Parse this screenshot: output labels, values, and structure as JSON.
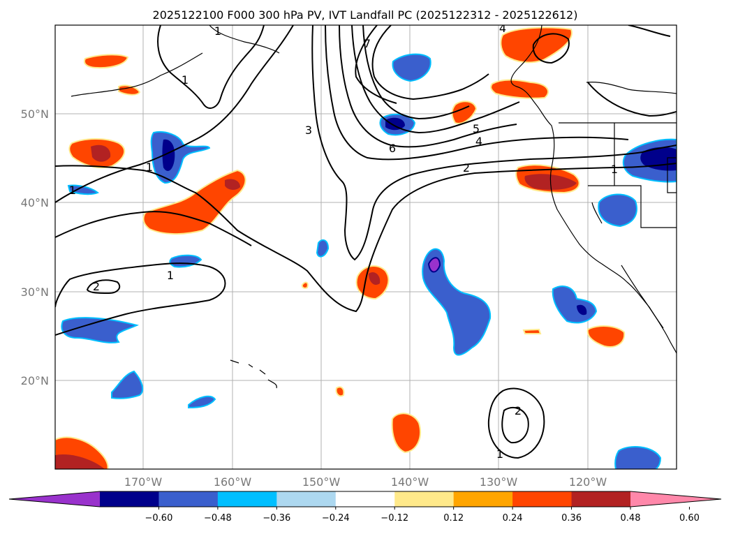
{
  "title": "2025122100 F000 300 hPa PV, IVT Landfall PC (2025122312 - 2025122612)",
  "map": {
    "lat_ticks": [
      "50°N",
      "40°N",
      "30°N",
      "20°N"
    ],
    "lon_ticks": [
      "170°W",
      "160°W",
      "150°W",
      "140°W",
      "130°W",
      "120°W"
    ],
    "extent": {
      "lon_min": -180,
      "lon_max": -110,
      "lat_min": 10,
      "lat_max": 60
    }
  },
  "pv_contour_labels": [
    "1",
    "1",
    "1",
    "1",
    "2",
    "2",
    "2",
    "3",
    "4",
    "5",
    "6",
    "7",
    "1",
    "1",
    "4",
    "1"
  ],
  "colorbar": {
    "tick_labels": [
      "−0.60",
      "−0.48",
      "−0.36",
      "−0.24",
      "−0.12",
      "0.12",
      "0.24",
      "0.36",
      "0.48",
      "0.60"
    ],
    "colors": [
      "#9932cc",
      "#00008b",
      "#3a5fcd",
      "#00bfff",
      "#add8f0",
      "#ffffff",
      "#ffe98a",
      "#ffa500",
      "#ff4500",
      "#b22222",
      "#ff88aa"
    ]
  },
  "colors": {
    "land_line": "#000000",
    "grid": "#b0b0b0",
    "contour": "#000000"
  }
}
